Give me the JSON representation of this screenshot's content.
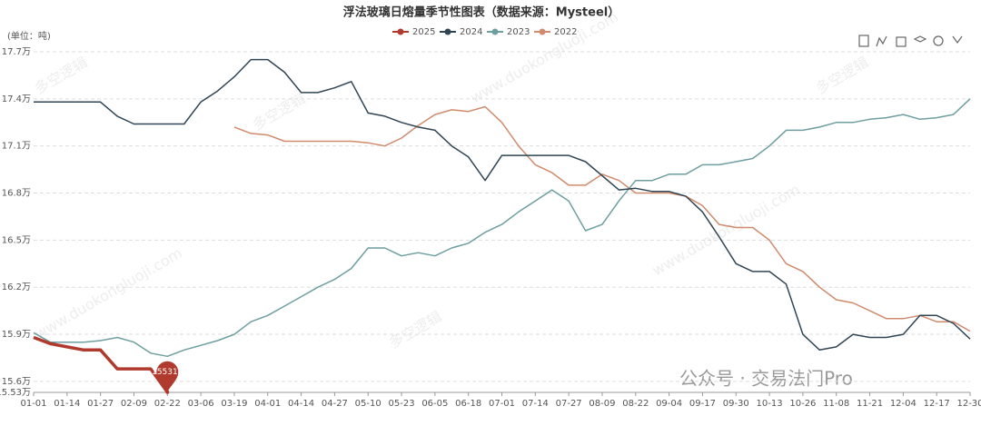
{
  "chart_data": {
    "type": "line",
    "title": "浮法玻璃日熔量季节性图表（数据来源：Mysteel）",
    "unit_label": "(单位：吨)",
    "watermarks": [
      "多空逻辑",
      "www.duokongluoji.com",
      "公众号 · 交易法门Pro"
    ],
    "categories": [
      "01-01",
      null,
      "01-14",
      null,
      "01-27",
      null,
      "02-09",
      null,
      "02-22",
      null,
      "03-06",
      null,
      "03-19",
      null,
      "04-01",
      null,
      "04-14",
      null,
      "04-27",
      null,
      "05-10",
      null,
      "05-23",
      null,
      "06-05",
      null,
      "06-18",
      null,
      "07-01",
      null,
      "07-14",
      null,
      "07-27",
      null,
      "08-09",
      null,
      "08-22",
      null,
      "09-04",
      null,
      "09-17",
      null,
      "09-30",
      null,
      "10-13",
      null,
      "10-26",
      null,
      "11-08",
      null,
      "11-21",
      null,
      "12-04",
      null,
      "12-17",
      null,
      "12-30"
    ],
    "series": [
      {
        "name": "2025",
        "color": "#b03a2e",
        "values": [
          158800,
          158400,
          158200,
          158000,
          158000,
          156800,
          156800,
          156800,
          155318,
          null,
          null,
          null,
          null,
          null,
          null,
          null,
          null,
          null,
          null,
          null,
          null,
          null,
          null,
          null,
          null,
          null,
          null,
          null,
          null,
          null,
          null,
          null,
          null,
          null,
          null,
          null,
          null,
          null,
          null,
          null,
          null,
          null,
          null,
          null,
          null,
          null,
          null,
          null,
          null,
          null,
          null,
          null,
          null,
          null,
          null,
          null,
          null
        ]
      },
      {
        "name": "2024",
        "color": "#2f4554",
        "values": [
          173800,
          173800,
          173800,
          173800,
          173800,
          172900,
          172400,
          172400,
          172400,
          172400,
          173800,
          174500,
          175400,
          176500,
          176500,
          175700,
          174400,
          174400,
          174700,
          175100,
          173100,
          172900,
          172500,
          172200,
          172000,
          171000,
          170300,
          168800,
          170400,
          170400,
          170400,
          170400,
          170400,
          170000,
          169100,
          168200,
          168300,
          168100,
          168100,
          167800,
          166800,
          165200,
          163500,
          163000,
          163000,
          162200,
          159000,
          158000,
          158200,
          159000,
          158800,
          158800,
          159000,
          160200,
          160200,
          159700,
          158700
        ]
      },
      {
        "name": "2023",
        "color": "#6e9ea0",
        "values": [
          159100,
          158500,
          158500,
          158500,
          158600,
          158800,
          158500,
          157800,
          157600,
          158000,
          158300,
          158600,
          159000,
          159800,
          160200,
          160800,
          161400,
          162000,
          162500,
          163200,
          164500,
          164500,
          164000,
          164200,
          164000,
          164500,
          164800,
          165500,
          166000,
          166800,
          167500,
          168200,
          167500,
          165600,
          166000,
          167500,
          168800,
          168800,
          169200,
          169200,
          169800,
          169800,
          170000,
          170200,
          171000,
          172000,
          172000,
          172200,
          172500,
          172500,
          172700,
          172800,
          173000,
          172700,
          172800,
          173000,
          174000
        ]
      },
      {
        "name": "2022",
        "color": "#d08a6c",
        "values": [
          null,
          null,
          null,
          null,
          null,
          null,
          null,
          null,
          null,
          null,
          null,
          null,
          172200,
          171800,
          171700,
          171300,
          171300,
          171300,
          171300,
          171300,
          171200,
          171000,
          171500,
          172300,
          173000,
          173300,
          173200,
          173500,
          172500,
          171000,
          169800,
          169300,
          168500,
          168500,
          169200,
          168800,
          168000,
          168000,
          168000,
          167800,
          167200,
          166000,
          165800,
          165800,
          165000,
          163500,
          163000,
          162000,
          161200,
          161000,
          160500,
          160000,
          160000,
          160200,
          159800,
          159800,
          159200
        ]
      }
    ],
    "ylim": [
      155300,
      177000
    ],
    "yticks": [
      {
        "value": 155300,
        "label": "15.53万"
      },
      {
        "value": 156000,
        "label": "15.6万"
      },
      {
        "value": 159000,
        "label": "15.9万"
      },
      {
        "value": 162000,
        "label": "16.2万"
      },
      {
        "value": 165000,
        "label": "16.5万"
      },
      {
        "value": 168000,
        "label": "16.8万"
      },
      {
        "value": 171000,
        "label": "17.1万"
      },
      {
        "value": 174000,
        "label": "17.4万"
      },
      {
        "value": 177000,
        "label": "17.7万"
      }
    ],
    "grid": true,
    "legend": "top"
  }
}
